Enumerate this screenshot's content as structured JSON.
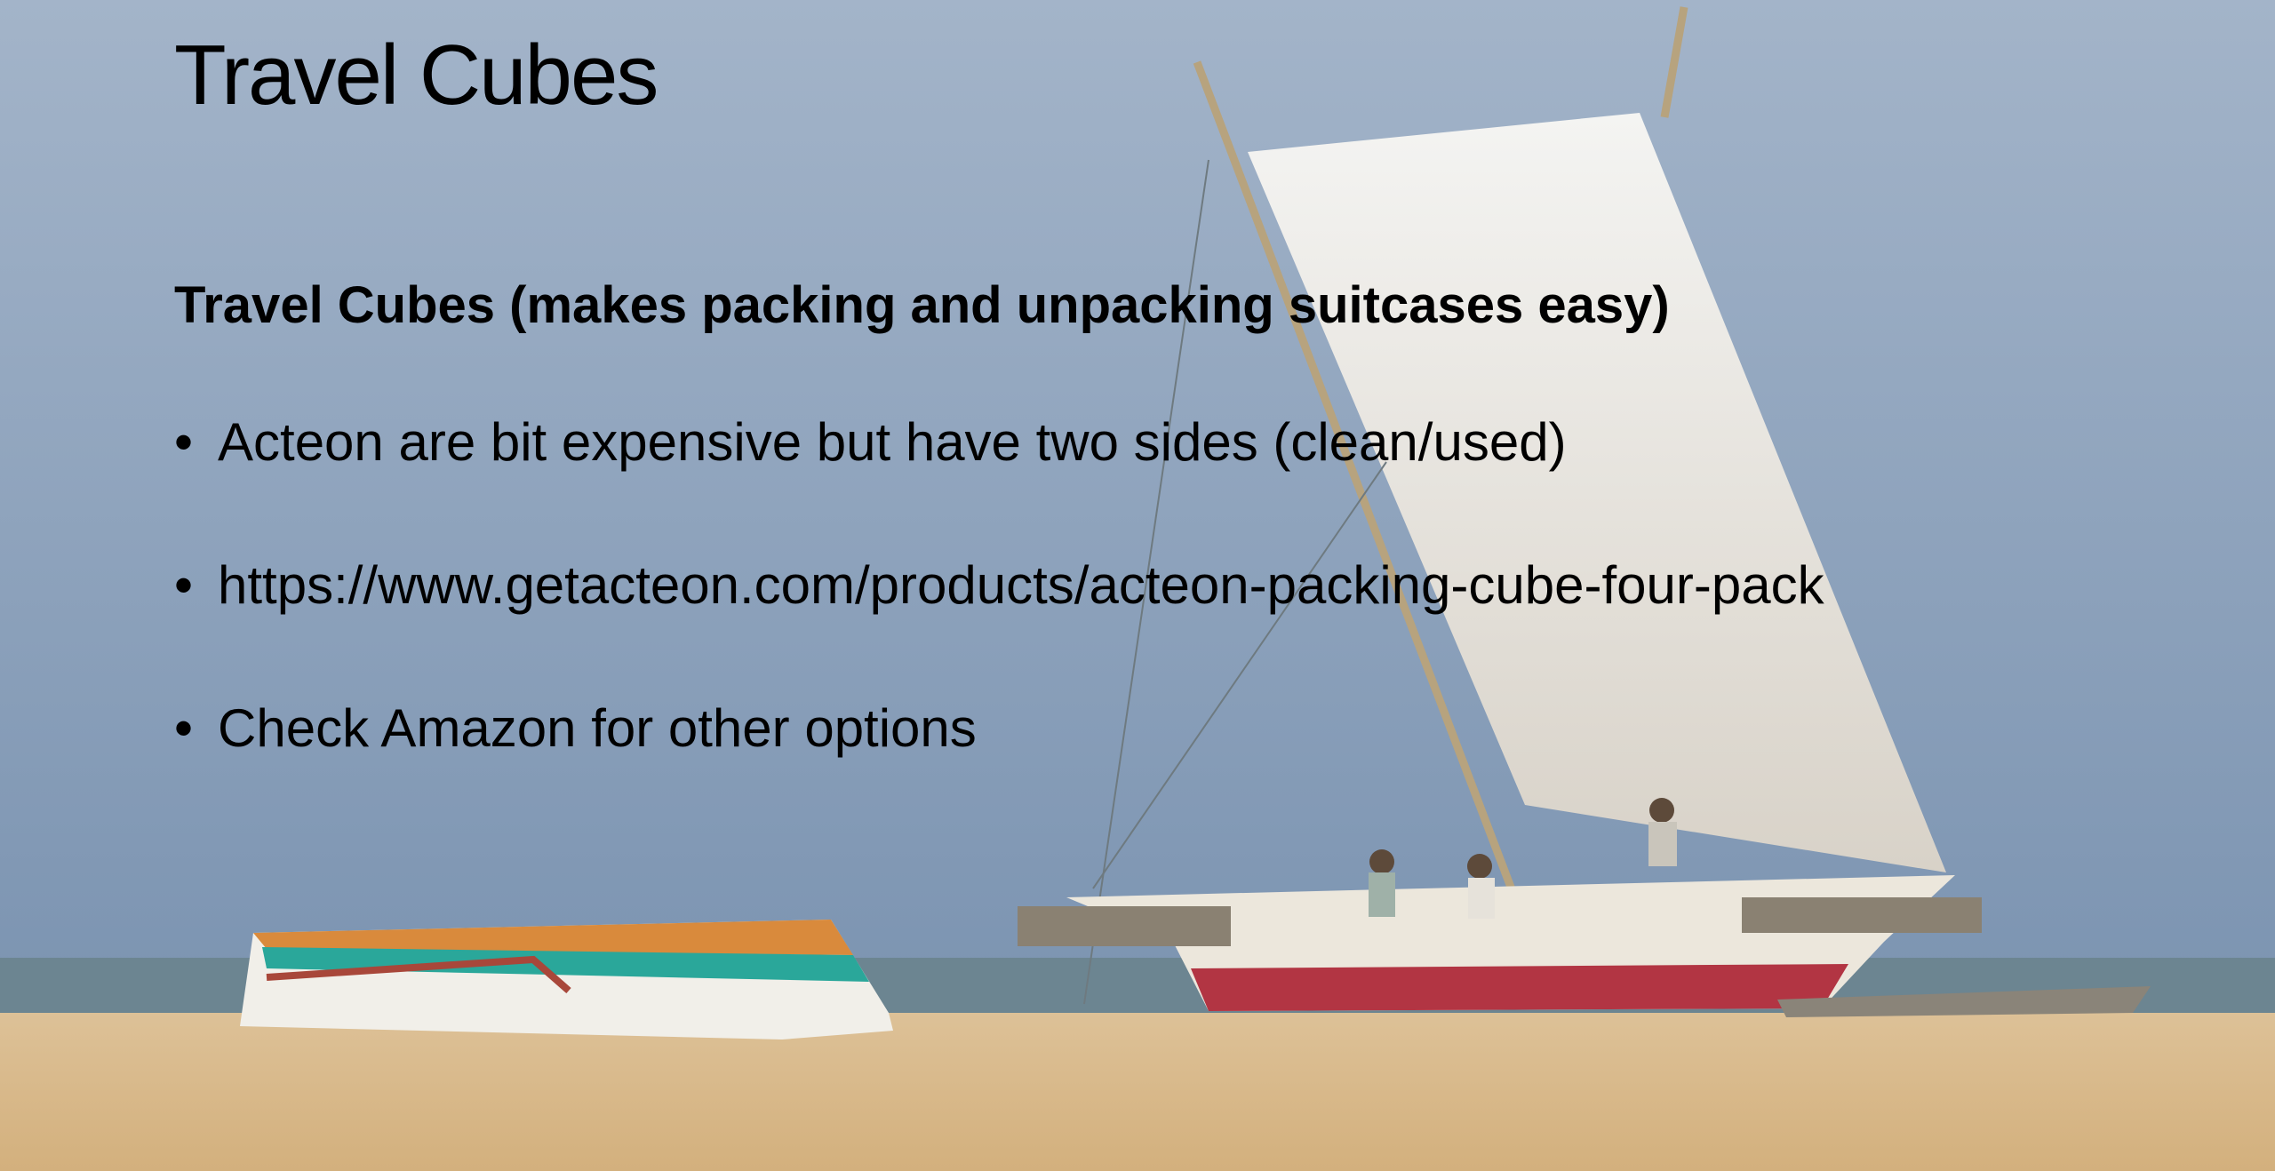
{
  "slide": {
    "title": "Travel Cubes",
    "subtitle": "Travel Cubes (makes packing and unpacking suitcases easy)",
    "bullets": [
      "Acteon are bit expensive but have two sides (clean/used)",
      "https://www.getacteon.com/products/acteon-packing-cube-four-pack",
      "Check Amazon for other options"
    ]
  }
}
